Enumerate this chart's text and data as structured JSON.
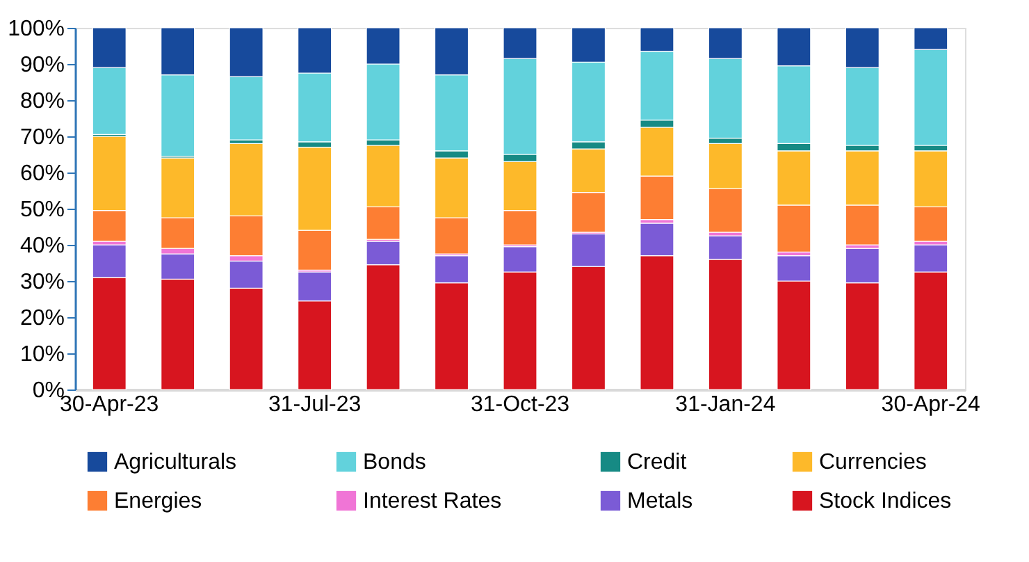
{
  "chart_data": {
    "type": "bar",
    "stacked": true,
    "categories": [
      "30-Apr-23",
      null,
      null,
      "31-Jul-23",
      null,
      null,
      "31-Oct-23",
      null,
      null,
      "31-Jan-24",
      null,
      null,
      "30-Apr-24"
    ],
    "series": [
      {
        "name": "Stock Indices",
        "color": "#d7151f",
        "values": [
          31,
          30.5,
          28,
          24.5,
          34.5,
          29.5,
          32.5,
          34,
          37,
          36,
          30,
          29.5,
          32.5
        ]
      },
      {
        "name": "Metals",
        "color": "#7b5bd6",
        "values": [
          9,
          7,
          7.5,
          8,
          6.5,
          7.5,
          7,
          9,
          9,
          6.5,
          7,
          9.5,
          7.5
        ]
      },
      {
        "name": "Interest Rates",
        "color": "#f075d6",
        "values": [
          1,
          1.5,
          1.5,
          0.5,
          0.5,
          0.5,
          0.5,
          0.5,
          1,
          1,
          1,
          1,
          1
        ]
      },
      {
        "name": "Energies",
        "color": "#fd7e33",
        "values": [
          8.5,
          8.5,
          11,
          11,
          9,
          10,
          9.5,
          11,
          12,
          12,
          13,
          11,
          9.5
        ]
      },
      {
        "name": "Currencies",
        "color": "#fdb92a",
        "values": [
          20.5,
          16.5,
          20,
          23,
          17,
          16.5,
          13.5,
          12,
          13.5,
          12.5,
          15,
          15,
          15.5
        ]
      },
      {
        "name": "Credit",
        "color": "#168a84",
        "values": [
          0.5,
          0.5,
          1,
          1.5,
          1.5,
          2,
          2,
          2,
          2,
          1.5,
          2,
          1.5,
          1.5
        ]
      },
      {
        "name": "Bonds",
        "color": "#62d2dc",
        "values": [
          18.5,
          22.5,
          17.5,
          19,
          21,
          21,
          26.5,
          22,
          19,
          22,
          21.5,
          21.5,
          26.5
        ]
      },
      {
        "name": "Agriculturals",
        "color": "#174a9c",
        "values": [
          11,
          13,
          13.5,
          12.5,
          10,
          13,
          8.5,
          9.5,
          6.5,
          8.5,
          10.5,
          11,
          6
        ]
      }
    ],
    "ylim": [
      0,
      100
    ],
    "yticks": [
      {
        "value": 0,
        "label": "0%"
      },
      {
        "value": 10,
        "label": "10%"
      },
      {
        "value": 20,
        "label": "20%"
      },
      {
        "value": 30,
        "label": "30%"
      },
      {
        "value": 40,
        "label": "40%"
      },
      {
        "value": 50,
        "label": "50%"
      },
      {
        "value": 60,
        "label": "60%"
      },
      {
        "value": 70,
        "label": "70%"
      },
      {
        "value": 80,
        "label": "80%"
      },
      {
        "value": 90,
        "label": "90%"
      },
      {
        "value": 100,
        "label": "100%"
      }
    ],
    "grid": false,
    "legend": "bottom"
  }
}
